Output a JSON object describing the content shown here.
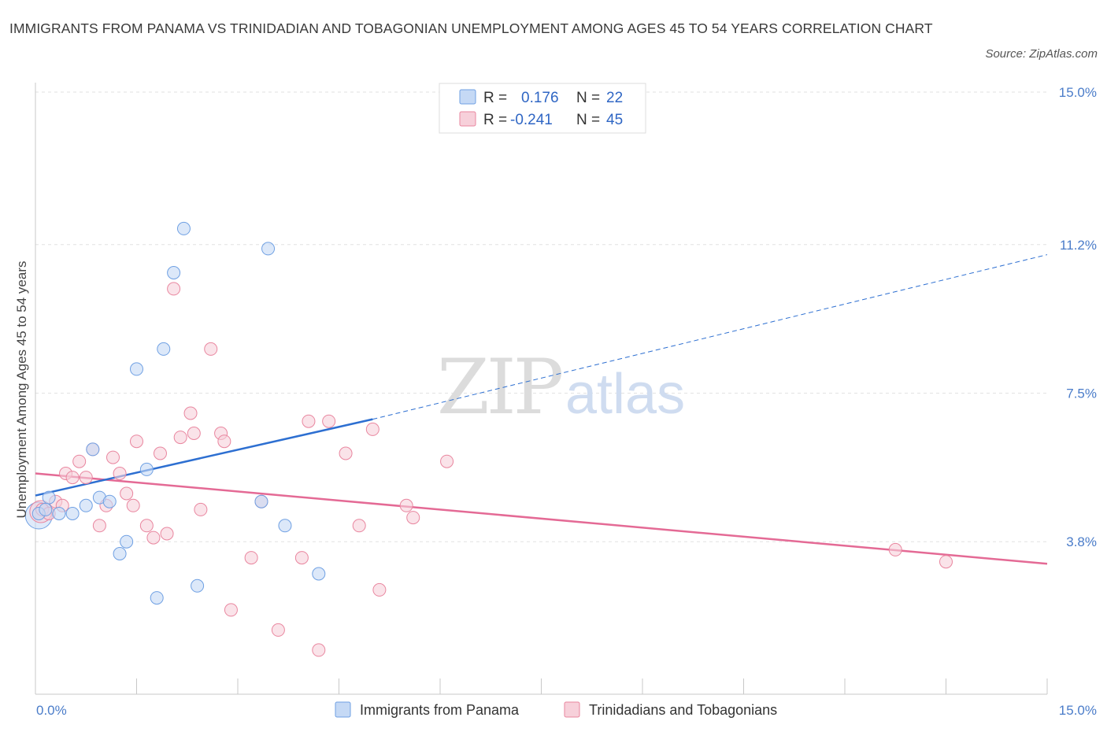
{
  "title": "IMMIGRANTS FROM PANAMA VS TRINIDADIAN AND TOBAGONIAN UNEMPLOYMENT AMONG AGES 45 TO 54 YEARS CORRELATION CHART",
  "source": "Source: ZipAtlas.com",
  "watermark": {
    "zip": "ZIP",
    "atlas": "atlas"
  },
  "colors": {
    "blue": "#6fa0e3",
    "blue_fill": "#c5d9f5",
    "blue_line": "#2d6fd1",
    "pink": "#e9869f",
    "pink_fill": "#f7d0da",
    "pink_line": "#e46a95",
    "tick_text": "#4a7cc9"
  },
  "legend": {
    "rows": [
      {
        "r_label": "R =",
        "r_value": "0.176",
        "n_label": "N =",
        "n_value": "22"
      },
      {
        "r_label": "R =",
        "r_value": "-0.241",
        "n_label": "N =",
        "n_value": "45"
      }
    ]
  },
  "chart_data": {
    "type": "scatter",
    "title": "IMMIGRANTS FROM PANAMA VS TRINIDADIAN AND TOBAGONIAN UNEMPLOYMENT AMONG AGES 45 TO 54 YEARS CORRELATION CHART",
    "xlabel": "",
    "ylabel": "Unemployment Among Ages 45 to 54 years",
    "xlim": [
      0,
      15
    ],
    "ylim": [
      0,
      15
    ],
    "x_tick_labels": [
      "0.0%",
      "15.0%"
    ],
    "y_ticks": [
      {
        "value": 3.8,
        "label": "3.8%"
      },
      {
        "value": 7.5,
        "label": "7.5%"
      },
      {
        "value": 11.2,
        "label": "11.2%"
      },
      {
        "value": 15.0,
        "label": "15.0%"
      }
    ],
    "series": [
      {
        "name": "Immigrants from Panama",
        "color": "blue",
        "points": [
          [
            0.05,
            4.5
          ],
          [
            0.2,
            4.9
          ],
          [
            0.35,
            4.5
          ],
          [
            0.55,
            4.5
          ],
          [
            0.75,
            4.7
          ],
          [
            0.85,
            6.1
          ],
          [
            0.95,
            4.9
          ],
          [
            1.1,
            4.8
          ],
          [
            1.25,
            3.5
          ],
          [
            1.35,
            3.8
          ],
          [
            1.5,
            8.1
          ],
          [
            1.65,
            5.6
          ],
          [
            1.8,
            2.4
          ],
          [
            1.9,
            8.6
          ],
          [
            2.05,
            10.5
          ],
          [
            2.2,
            11.6
          ],
          [
            2.4,
            2.7
          ],
          [
            3.45,
            11.1
          ],
          [
            3.35,
            4.8
          ],
          [
            3.7,
            4.2
          ],
          [
            4.2,
            3.0
          ],
          [
            0.15,
            4.6
          ]
        ]
      },
      {
        "name": "Trinidadians and Tobagonians",
        "color": "pink",
        "points": [
          [
            0.1,
            4.6
          ],
          [
            0.3,
            4.8
          ],
          [
            0.4,
            4.7
          ],
          [
            0.45,
            5.5
          ],
          [
            0.55,
            5.4
          ],
          [
            0.65,
            5.8
          ],
          [
            0.75,
            5.4
          ],
          [
            0.85,
            6.1
          ],
          [
            0.95,
            4.2
          ],
          [
            1.05,
            4.7
          ],
          [
            1.15,
            5.9
          ],
          [
            1.25,
            5.5
          ],
          [
            1.35,
            5.0
          ],
          [
            1.45,
            4.7
          ],
          [
            1.5,
            6.3
          ],
          [
            1.65,
            4.2
          ],
          [
            1.75,
            3.9
          ],
          [
            1.85,
            6.0
          ],
          [
            1.95,
            4.0
          ],
          [
            2.05,
            10.1
          ],
          [
            2.15,
            6.4
          ],
          [
            2.3,
            7.0
          ],
          [
            2.35,
            6.5
          ],
          [
            2.45,
            4.6
          ],
          [
            2.6,
            8.6
          ],
          [
            2.75,
            6.5
          ],
          [
            2.8,
            6.3
          ],
          [
            2.9,
            2.1
          ],
          [
            3.2,
            3.4
          ],
          [
            3.35,
            4.8
          ],
          [
            3.6,
            1.6
          ],
          [
            3.95,
            3.4
          ],
          [
            4.05,
            6.8
          ],
          [
            4.2,
            1.1
          ],
          [
            4.35,
            6.8
          ],
          [
            4.6,
            6.0
          ],
          [
            4.8,
            4.2
          ],
          [
            5.0,
            6.6
          ],
          [
            5.1,
            2.6
          ],
          [
            5.5,
            4.7
          ],
          [
            5.6,
            4.4
          ],
          [
            6.1,
            5.8
          ],
          [
            12.75,
            3.6
          ],
          [
            13.5,
            3.3
          ],
          [
            0.2,
            4.5
          ]
        ]
      }
    ],
    "trend_lines": [
      {
        "series": "Immigrants from Panama",
        "solid": [
          [
            0,
            4.95
          ],
          [
            5.0,
            6.85
          ]
        ],
        "dashed": [
          [
            5.0,
            6.85
          ],
          [
            15.0,
            10.95
          ]
        ]
      },
      {
        "series": "Trinidadians and Tobagonians",
        "solid": [
          [
            0,
            5.5
          ],
          [
            15.0,
            3.25
          ]
        ]
      }
    ],
    "legend_position": "top-center",
    "grid": true
  }
}
